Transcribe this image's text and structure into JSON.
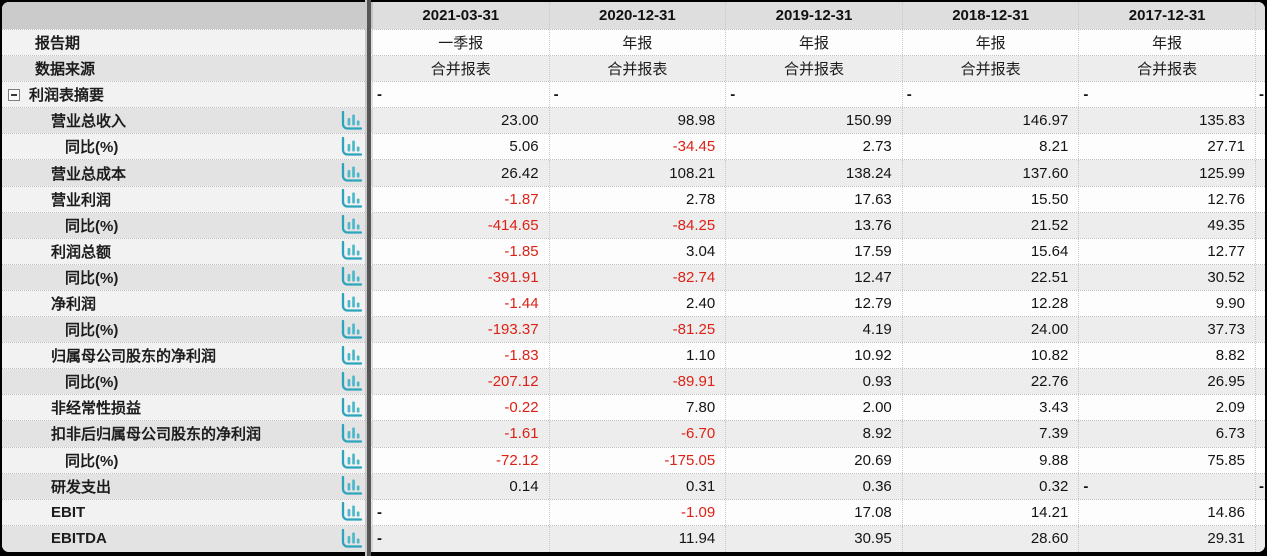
{
  "table": {
    "corner_label": "",
    "columns": [
      "2021-03-31",
      "2020-12-31",
      "2019-12-31",
      "2018-12-31",
      "2017-12-31"
    ],
    "colors": {
      "negative_value": "#dc2116",
      "chart_icon_teal": "#4db7cb",
      "chart_icon_axis": "#2da4bc",
      "header_bg": "#dedede",
      "label_col_bg": "#e3e3e3"
    },
    "rows": [
      {
        "label": "报告期",
        "type": "meta",
        "values": [
          "一季报",
          "年报",
          "年报",
          "年报",
          "年报"
        ]
      },
      {
        "label": "数据来源",
        "type": "meta",
        "values": [
          "合并报表",
          "合并报表",
          "合并报表",
          "合并报表",
          "合并报表"
        ]
      },
      {
        "label": "利润表摘要",
        "type": "section",
        "collapse_icon": "minus-box",
        "values": [
          "-",
          "-",
          "-",
          "-",
          "-"
        ],
        "edge": "-"
      },
      {
        "label": "营业总收入",
        "type": "item",
        "chart_icon": true,
        "values": [
          "23.00",
          "98.98",
          "150.99",
          "146.97",
          "135.83"
        ]
      },
      {
        "label": "同比(%)",
        "type": "sub",
        "chart_icon": true,
        "values": [
          "5.06",
          "-34.45",
          "2.73",
          "8.21",
          "27.71"
        ]
      },
      {
        "label": "营业总成本",
        "type": "item",
        "chart_icon": true,
        "values": [
          "26.42",
          "108.21",
          "138.24",
          "137.60",
          "125.99"
        ]
      },
      {
        "label": "营业利润",
        "type": "item",
        "chart_icon": true,
        "values": [
          "-1.87",
          "2.78",
          "17.63",
          "15.50",
          "12.76"
        ]
      },
      {
        "label": "同比(%)",
        "type": "sub",
        "chart_icon": true,
        "values": [
          "-414.65",
          "-84.25",
          "13.76",
          "21.52",
          "49.35"
        ]
      },
      {
        "label": "利润总额",
        "type": "item",
        "chart_icon": true,
        "values": [
          "-1.85",
          "3.04",
          "17.59",
          "15.64",
          "12.77"
        ]
      },
      {
        "label": "同比(%)",
        "type": "sub",
        "chart_icon": true,
        "values": [
          "-391.91",
          "-82.74",
          "12.47",
          "22.51",
          "30.52"
        ]
      },
      {
        "label": "净利润",
        "type": "item",
        "chart_icon": true,
        "values": [
          "-1.44",
          "2.40",
          "12.79",
          "12.28",
          "9.90"
        ]
      },
      {
        "label": "同比(%)",
        "type": "sub",
        "chart_icon": true,
        "values": [
          "-193.37",
          "-81.25",
          "4.19",
          "24.00",
          "37.73"
        ]
      },
      {
        "label": "归属母公司股东的净利润",
        "type": "item",
        "chart_icon": true,
        "values": [
          "-1.83",
          "1.10",
          "10.92",
          "10.82",
          "8.82"
        ]
      },
      {
        "label": "同比(%)",
        "type": "sub",
        "chart_icon": true,
        "values": [
          "-207.12",
          "-89.91",
          "0.93",
          "22.76",
          "26.95"
        ]
      },
      {
        "label": "非经常性损益",
        "type": "item",
        "chart_icon": true,
        "values": [
          "-0.22",
          "7.80",
          "2.00",
          "3.43",
          "2.09"
        ]
      },
      {
        "label": "扣非后归属母公司股东的净利润",
        "type": "item",
        "chart_icon": true,
        "values": [
          "-1.61",
          "-6.70",
          "8.92",
          "7.39",
          "6.73"
        ]
      },
      {
        "label": "同比(%)",
        "type": "sub",
        "chart_icon": true,
        "values": [
          "-72.12",
          "-175.05",
          "20.69",
          "9.88",
          "75.85"
        ]
      },
      {
        "label": "研发支出",
        "type": "item",
        "chart_icon": true,
        "values": [
          "0.14",
          "0.31",
          "0.36",
          "0.32",
          "-"
        ],
        "edge": "-"
      },
      {
        "label": "EBIT",
        "type": "item",
        "chart_icon": true,
        "values": [
          "-",
          "-1.09",
          "17.08",
          "14.21",
          "14.86"
        ]
      },
      {
        "label": "EBITDA",
        "type": "item",
        "chart_icon": true,
        "values": [
          "-",
          "11.94",
          "30.95",
          "28.60",
          "29.31"
        ]
      }
    ]
  }
}
